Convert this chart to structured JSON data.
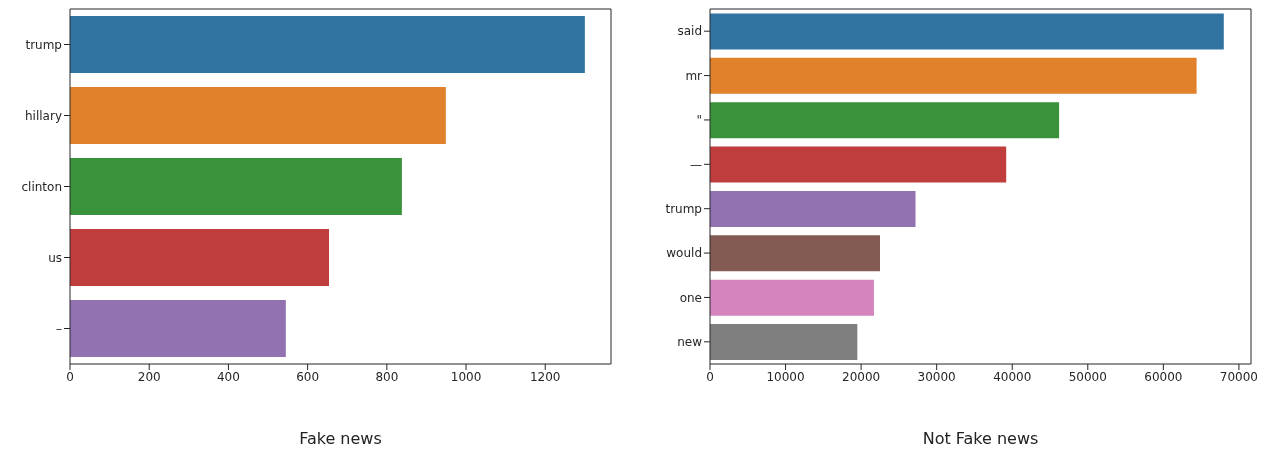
{
  "chart_data": [
    {
      "type": "bar",
      "orientation": "horizontal",
      "xlabel": "Fake news",
      "categories": [
        "trump",
        "hillary",
        "clinton",
        "us",
        "–"
      ],
      "values": [
        1300,
        949,
        838,
        654,
        545
      ],
      "colors": [
        "#3274a1",
        "#e1812c",
        "#3a923a",
        "#c03d3e",
        "#9372b2"
      ],
      "xlim": [
        0,
        1366
      ],
      "xticks": [
        0,
        200,
        400,
        600,
        800,
        1000,
        1200
      ],
      "grid": false,
      "legend": false
    },
    {
      "type": "bar",
      "orientation": "horizontal",
      "xlabel": "Not Fake news",
      "categories": [
        "said",
        "mr",
        "\"",
        "—",
        "trump",
        "would",
        "one",
        "new"
      ],
      "values": [
        68000,
        64400,
        46200,
        39200,
        27200,
        22500,
        21700,
        19500
      ],
      "colors": [
        "#3274a1",
        "#e1812c",
        "#3a923a",
        "#c03d3e",
        "#9372b2",
        "#845b53",
        "#d684bd",
        "#7f7f7f"
      ],
      "xlim": [
        0,
        71600
      ],
      "xticks": [
        0,
        10000,
        20000,
        30000,
        40000,
        50000,
        60000,
        70000
      ],
      "grid": false,
      "legend": false
    }
  ]
}
